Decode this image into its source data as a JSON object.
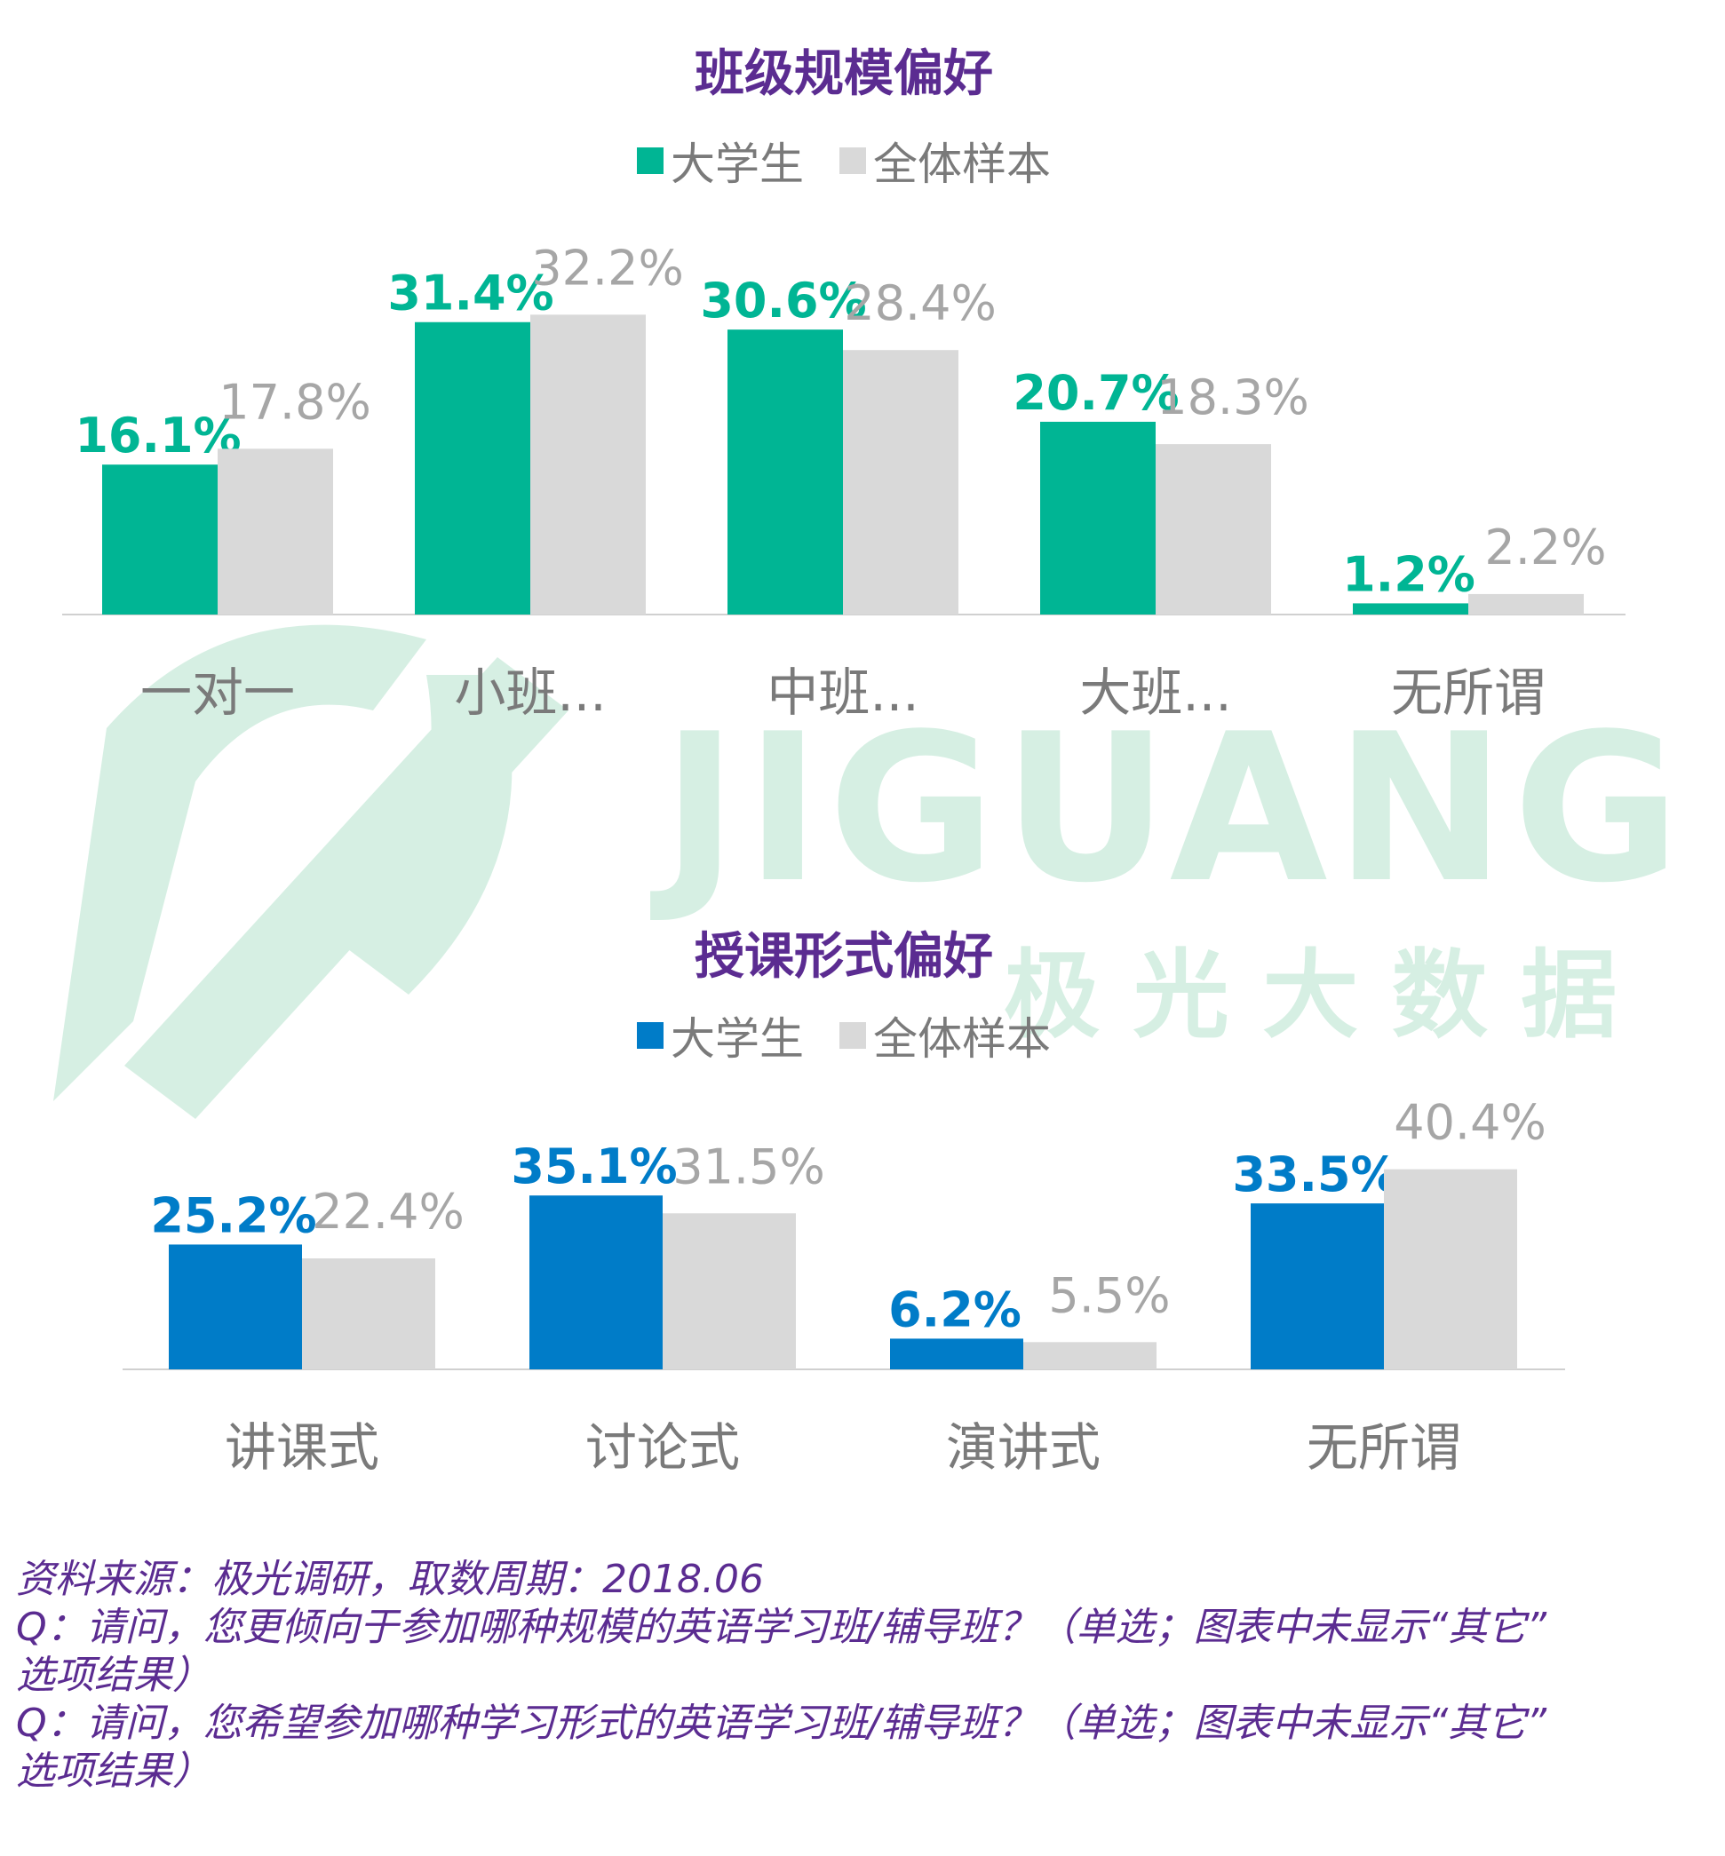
{
  "watermark": {
    "text": "JIGUANG",
    "subtext": "极 光 大 数 据"
  },
  "chart_data": [
    {
      "type": "bar",
      "title": "班级规模偏好",
      "categories": [
        "一对一",
        "小班...",
        "中班...",
        "大班...",
        "无所谓"
      ],
      "series": [
        {
          "name": "大学生",
          "color": "#00b594",
          "values": [
            16.1,
            31.4,
            30.6,
            20.7,
            1.2
          ],
          "labels": [
            "16.1%",
            "31.4%",
            "30.6%",
            "20.7%",
            "1.2%"
          ]
        },
        {
          "name": "全体样本",
          "color": "#d9d9d9",
          "values": [
            17.8,
            32.2,
            28.4,
            18.3,
            2.2
          ],
          "labels": [
            "17.8%",
            "32.2%",
            "28.4%",
            "18.3%",
            "2.2%"
          ]
        }
      ],
      "ylim": [
        0,
        35
      ],
      "grid": false,
      "legend_position": "top-center",
      "xlabel": "",
      "ylabel": ""
    },
    {
      "type": "bar",
      "title": "授课形式偏好",
      "categories": [
        "讲课式",
        "讨论式",
        "演讲式",
        "无所谓"
      ],
      "series": [
        {
          "name": "大学生",
          "color": "#007cc8",
          "values": [
            25.2,
            35.1,
            6.2,
            33.5
          ],
          "labels": [
            "25.2%",
            "35.1%",
            "6.2%",
            "33.5%"
          ]
        },
        {
          "name": "全体样本",
          "color": "#d9d9d9",
          "values": [
            22.4,
            31.5,
            5.5,
            40.4
          ],
          "labels": [
            "22.4%",
            "31.5%",
            "5.5%",
            "40.4%"
          ]
        }
      ],
      "ylim": [
        0,
        45
      ],
      "grid": false,
      "legend_position": "top-center",
      "xlabel": "",
      "ylabel": ""
    }
  ],
  "footnote": {
    "source": "资料来源：极光调研，取数周期：2018.06",
    "q1_line1": "Q：请问，您更倾向于参加哪种规模的英语学习班/辅导班？（单选；图表中未显示“其它”",
    "q1_line2": "选项结果）",
    "q2_line1": "Q：请问，您希望参加哪种学习形式的英语学习班/辅导班？（单选；图表中未显示“其它”",
    "q2_line2": "选项结果）"
  }
}
